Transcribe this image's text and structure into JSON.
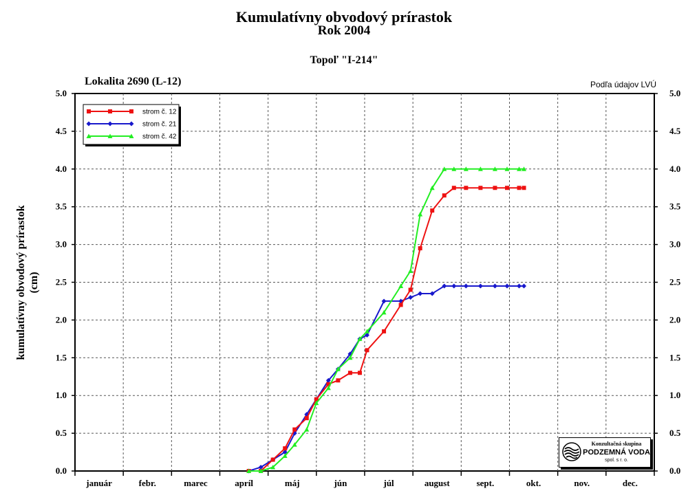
{
  "header": {
    "title": "Kumulatívny obvodový prírastok",
    "year": "Rok 2004",
    "species": "Topoľ \"I-214\"",
    "locality": "Lokalita 2690 (L-12)",
    "source": "Podľa údajov LVÚ"
  },
  "logo": {
    "line1": "Konzultačná skupina",
    "line2": "PODZEMNÁ VODA",
    "line3": "spol. s r. o."
  },
  "chart_data": {
    "type": "line",
    "ylabel": "kumulatívny obvodový prírastok\n(cm)",
    "ylabel_line1": "kumulatívny obvodový prírastok",
    "ylabel_line2": "(cm)",
    "ylim": [
      0,
      5
    ],
    "yticks": [
      "0.0",
      "0.5",
      "1.0",
      "1.5",
      "2.0",
      "2.5",
      "3.0",
      "3.5",
      "4.0",
      "4.5",
      "5.0"
    ],
    "x_unit": "month index (0 = start of january, 12 = end of december)",
    "xlim": [
      0,
      12
    ],
    "months": [
      "január",
      "febr.",
      "marec",
      "apríl",
      "máj",
      "jún",
      "júl",
      "august",
      "sept.",
      "okt.",
      "nov.",
      "dec."
    ],
    "grid": true,
    "legend_position": "top-left",
    "series": [
      {
        "name": "strom č. 12",
        "color": "#ee1111",
        "marker": "square",
        "x": [
          3.6,
          3.85,
          4.1,
          4.35,
          4.55,
          4.8,
          5.0,
          5.25,
          5.45,
          5.7,
          5.9,
          6.05,
          6.4,
          6.75,
          6.95,
          7.15,
          7.4,
          7.65,
          7.85,
          8.1,
          8.4,
          8.7,
          8.95,
          9.2,
          9.3
        ],
        "y": [
          0.0,
          0.0,
          0.15,
          0.3,
          0.55,
          0.7,
          0.95,
          1.15,
          1.2,
          1.3,
          1.3,
          1.6,
          1.85,
          2.2,
          2.4,
          2.95,
          3.45,
          3.65,
          3.75,
          3.75,
          3.75,
          3.75,
          3.75,
          3.75,
          3.75
        ]
      },
      {
        "name": "strom č. 21",
        "color": "#1818cc",
        "marker": "diamond",
        "x": [
          3.6,
          3.85,
          4.1,
          4.35,
          4.55,
          4.8,
          5.0,
          5.25,
          5.45,
          5.7,
          5.9,
          6.05,
          6.4,
          6.75,
          6.95,
          7.15,
          7.4,
          7.65,
          7.85,
          8.1,
          8.4,
          8.7,
          8.95,
          9.2,
          9.3
        ],
        "y": [
          0.0,
          0.05,
          0.15,
          0.25,
          0.5,
          0.75,
          0.95,
          1.2,
          1.35,
          1.55,
          1.75,
          1.8,
          2.25,
          2.25,
          2.3,
          2.35,
          2.35,
          2.45,
          2.45,
          2.45,
          2.45,
          2.45,
          2.45,
          2.45,
          2.45
        ]
      },
      {
        "name": "strom č. 42",
        "color": "#22ee22",
        "marker": "triangle",
        "x": [
          3.6,
          3.85,
          4.1,
          4.35,
          4.55,
          4.8,
          5.0,
          5.25,
          5.45,
          5.7,
          5.9,
          6.05,
          6.4,
          6.75,
          6.95,
          7.15,
          7.4,
          7.65,
          7.85,
          8.1,
          8.4,
          8.7,
          8.95,
          9.2,
          9.3
        ],
        "y": [
          0.0,
          0.0,
          0.05,
          0.2,
          0.35,
          0.55,
          0.9,
          1.1,
          1.35,
          1.5,
          1.75,
          1.85,
          2.1,
          2.45,
          2.65,
          3.4,
          3.75,
          4.0,
          4.0,
          4.0,
          4.0,
          4.0,
          4.0,
          4.0,
          4.0
        ]
      }
    ]
  }
}
